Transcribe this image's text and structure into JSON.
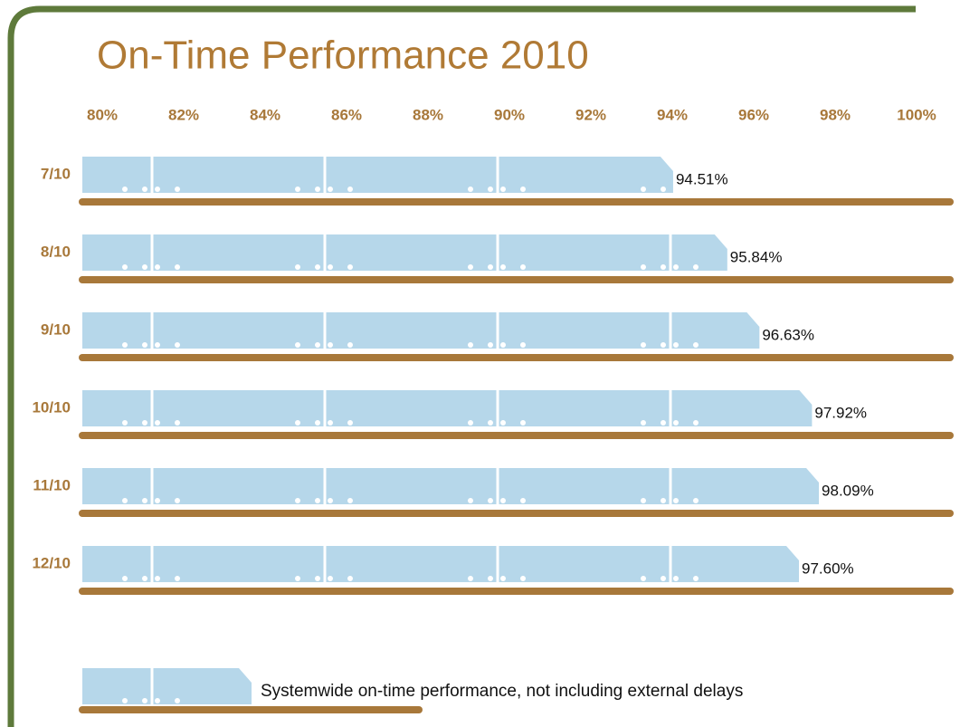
{
  "chart_data": {
    "type": "train-bar",
    "title": "On-Time Performance 2010",
    "categories": [
      "7/10",
      "8/10",
      "9/10",
      "10/10",
      "11/10",
      "12/10"
    ],
    "values": [
      94.51,
      95.84,
      96.63,
      97.92,
      98.09,
      97.6
    ],
    "value_labels": [
      "94.51%",
      "95.84%",
      "96.63%",
      "97.92%",
      "98.09%",
      "97.60%"
    ],
    "color": "#b6d7ea",
    "rail_color": "#a8783a",
    "xlim": [
      80,
      100
    ],
    "xticks": [
      {
        "value": 80,
        "label": "80%"
      },
      {
        "value": 82,
        "label": "82%"
      },
      {
        "value": 84,
        "label": "84%"
      },
      {
        "value": 86,
        "label": "86%"
      },
      {
        "value": 88,
        "label": "88%"
      },
      {
        "value": 90,
        "label": "90%"
      },
      {
        "value": 92,
        "label": "92%"
      },
      {
        "value": 94,
        "label": "94%"
      },
      {
        "value": 96,
        "label": "96%"
      },
      {
        "value": 98,
        "label": "98%"
      },
      {
        "value": 100,
        "label": "100%"
      }
    ],
    "legend": "Systemwide on-time performance, not including external delays"
  }
}
